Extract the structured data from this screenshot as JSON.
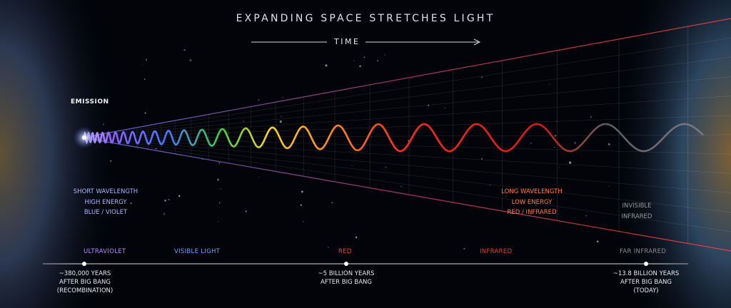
{
  "title": "EXPANDING SPACE STRETCHES LIGHT",
  "time_label": "TIME",
  "emission_label": "EMISSION",
  "left_block": [
    "SHORT WAVELENGTH",
    "HIGH ENERGY",
    "BLUE / VIOLET"
  ],
  "right_block": [
    "LONG WAVELENGTH",
    "LOW ENERGY",
    "RED / INFRARED"
  ],
  "far_block": [
    "INVISIBLE",
    "INFRARED"
  ],
  "bands": {
    "ultraviolet": "ULTRAVIOLET",
    "visible": "VISIBLE LIGHT",
    "red": "RED",
    "infrared": "INFRARED",
    "far_infrared": "FAR INFRARED"
  },
  "timeline": {
    "recombination": [
      "~380,000 YEARS",
      "AFTER BIG BANG",
      "(RECOMBINATION)"
    ],
    "five_billion": [
      "~5 BILLION YEARS",
      "AFTER BIG BANG"
    ],
    "today": [
      "~13.8 BILLION YEARS",
      "AFTER BIG BANG",
      "(TODAY)"
    ]
  },
  "colors": {
    "violet": "#8a5cff",
    "blue": "#3f7bff",
    "green": "#38d04a",
    "yellow": "#ffd21e",
    "orange": "#ff8a1a",
    "red": "#ff2a1a",
    "far_infrared": "#7a7a80"
  }
}
